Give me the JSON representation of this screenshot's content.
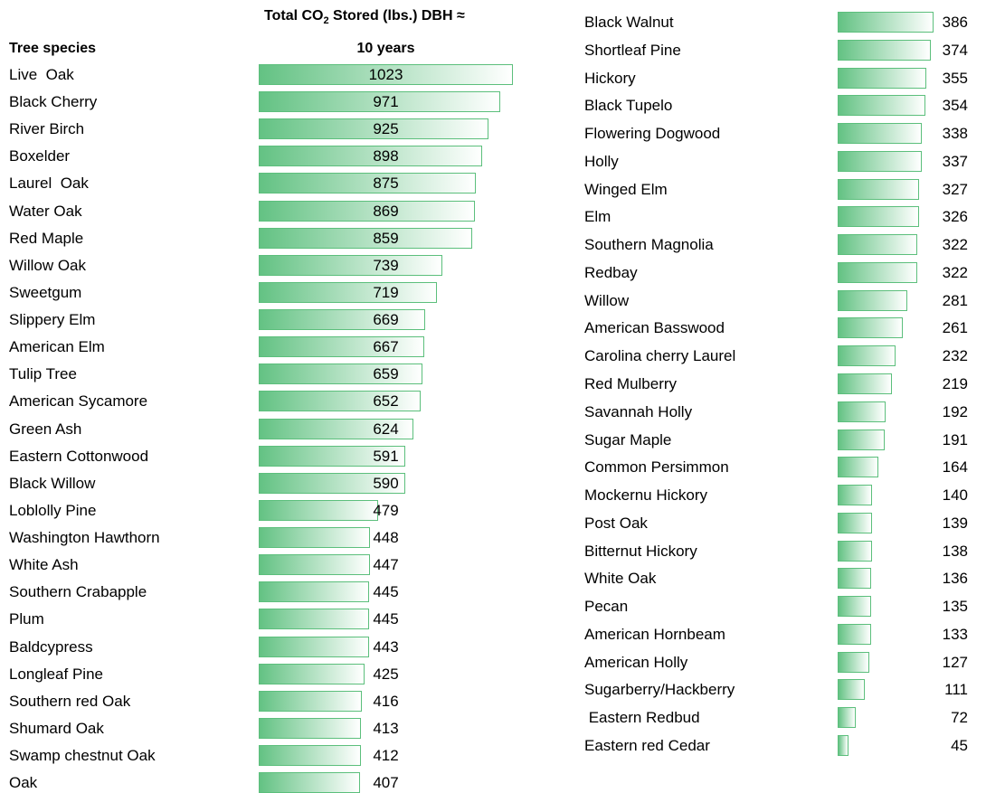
{
  "header": {
    "species_label": "Tree species",
    "value_title_parts": [
      "Total CO",
      "2",
      " Stored (lbs.) DBH ≈"
    ],
    "value_title_line2": "10 years"
  },
  "left": {
    "rows": [
      [
        "Live  Oak",
        1023
      ],
      [
        "Black Cherry",
        971
      ],
      [
        "River Birch",
        925
      ],
      [
        "Boxelder",
        898
      ],
      [
        "Laurel  Oak",
        875
      ],
      [
        "Water Oak",
        869
      ],
      [
        "Red Maple",
        859
      ],
      [
        "Willow Oak",
        739
      ],
      [
        "Sweetgum",
        719
      ],
      [
        "Slippery Elm",
        669
      ],
      [
        "American Elm",
        667
      ],
      [
        "Tulip Tree",
        659
      ],
      [
        "American Sycamore",
        652
      ],
      [
        "Green Ash",
        624
      ],
      [
        "Eastern Cottonwood",
        591
      ],
      [
        "Black Willow",
        590
      ],
      [
        "Loblolly Pine",
        479
      ],
      [
        "Washington Hawthorn",
        448
      ],
      [
        "White Ash",
        447
      ],
      [
        "Southern Crabapple",
        445
      ],
      [
        "Plum",
        445
      ],
      [
        "Baldcypress",
        443
      ],
      [
        "Longleaf Pine",
        425
      ],
      [
        "Southern red Oak",
        416
      ],
      [
        "Shumard Oak",
        413
      ],
      [
        "Swamp chestnut Oak",
        412
      ],
      [
        "Oak",
        407
      ]
    ]
  },
  "right": {
    "rows": [
      [
        "Black Walnut",
        386
      ],
      [
        "Shortleaf Pine",
        374
      ],
      [
        "Hickory",
        355
      ],
      [
        "Black Tupelo",
        354
      ],
      [
        "Flowering Dogwood",
        338
      ],
      [
        "Holly",
        337
      ],
      [
        "Winged Elm",
        327
      ],
      [
        "Elm",
        326
      ],
      [
        "Southern Magnolia",
        322
      ],
      [
        "Redbay",
        322
      ],
      [
        "Willow",
        281
      ],
      [
        "American Basswood",
        261
      ],
      [
        "Carolina cherry Laurel",
        232
      ],
      [
        "Red Mulberry",
        219
      ],
      [
        "Savannah Holly",
        192
      ],
      [
        "Sugar Maple",
        191
      ],
      [
        "Common Persimmon",
        164
      ],
      [
        "Mockernu Hickory",
        140
      ],
      [
        "Post Oak",
        139
      ],
      [
        "Bitternut Hickory",
        138
      ],
      [
        "White Oak",
        136
      ],
      [
        "Pecan",
        135
      ],
      [
        "American Hornbeam",
        133
      ],
      [
        "American Holly",
        127
      ],
      [
        "Sugarberry/Hackberry",
        111
      ],
      [
        " Eastern Redbud",
        72
      ],
      [
        "Eastern red Cedar",
        45
      ]
    ]
  }
}
